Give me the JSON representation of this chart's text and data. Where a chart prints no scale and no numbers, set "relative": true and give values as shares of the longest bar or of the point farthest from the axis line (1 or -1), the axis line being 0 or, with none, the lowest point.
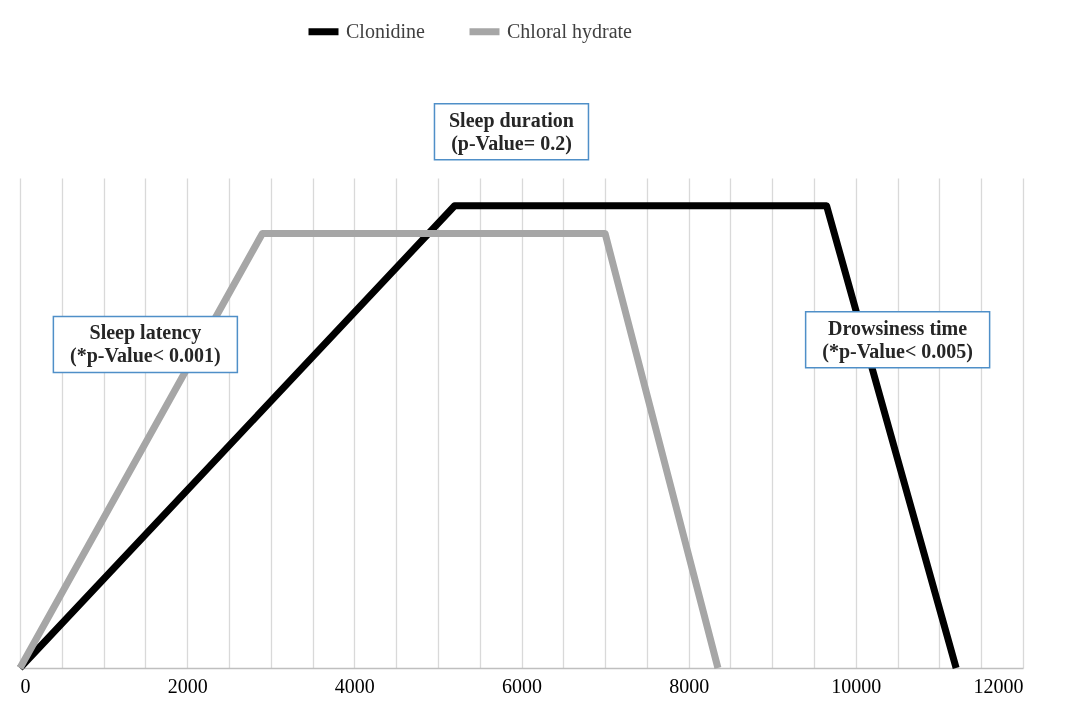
{
  "chart_data": {
    "type": "line",
    "relative": true,
    "series": [
      {
        "name": "Clonidine",
        "color": "#000000",
        "x": [
          0,
          5200,
          9650,
          11200
        ],
        "values": [
          0,
          1,
          1,
          0
        ]
      },
      {
        "name": "Chloral hydrate",
        "color": "#a6a6a6",
        "x": [
          0,
          2900,
          7000,
          8350
        ],
        "values": [
          0,
          0.94,
          0.94,
          0
        ]
      }
    ],
    "xlim": [
      0,
      12000
    ],
    "xticks": [
      0,
      {
        "value": 500,
        "label": null
      },
      {
        "value": 1000,
        "label": null
      },
      {
        "value": 1500,
        "label": null
      },
      2000,
      {
        "value": 2500,
        "label": null
      },
      {
        "value": 3000,
        "label": null
      },
      {
        "value": 3500,
        "label": null
      },
      4000,
      {
        "value": 4500,
        "label": null
      },
      {
        "value": 5000,
        "label": null
      },
      {
        "value": 5500,
        "label": null
      },
      6000,
      {
        "value": 6500,
        "label": null
      },
      {
        "value": 7000,
        "label": null
      },
      {
        "value": 7500,
        "label": null
      },
      8000,
      {
        "value": 8500,
        "label": null
      },
      {
        "value": 9000,
        "label": null
      },
      {
        "value": 9500,
        "label": null
      },
      10000,
      {
        "value": 10500,
        "label": null
      },
      {
        "value": 11000,
        "label": null
      },
      {
        "value": 11500,
        "label": null
      },
      12000
    ],
    "annotations": [
      "Sleep latency\n(*p-Value< 0.001)",
      "Sleep duration\n(p-Value= 0.2)",
      "Drowsiness time\n(*p-Value< 0.005)"
    ],
    "grid": "x",
    "legend": "top",
    "line_style": "solid",
    "marker": "none"
  }
}
